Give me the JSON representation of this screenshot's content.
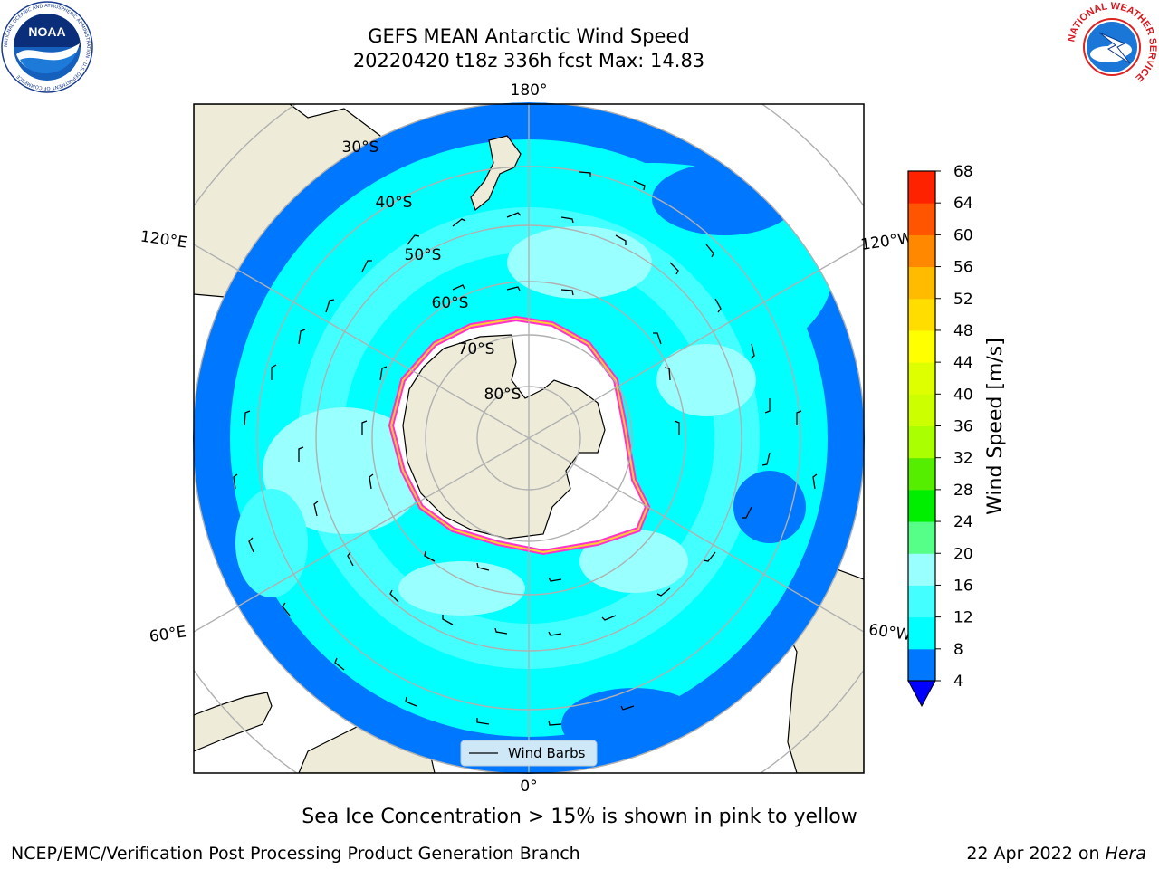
{
  "header": {
    "title_line1": "GEFS MEAN Antarctic Wind Speed",
    "title_line2": "20220420 t18z 336h fcst   Max: 14.83"
  },
  "logos": {
    "left": "NOAA",
    "left_ring_text": "NATIONAL OCEANIC AND ATMOSPHERIC ADMINISTRATION · U.S. DEPARTMENT OF COMMERCE",
    "right_ring_text": "NATIONAL WEATHER SERVICE"
  },
  "map": {
    "projection": "south polar stereographic",
    "longitude_labels": [
      "180°",
      "120°E",
      "120°W",
      "60°E",
      "60°W",
      "0°"
    ],
    "latitude_labels": [
      "30°S",
      "40°S",
      "50°S",
      "60°S",
      "70°S",
      "80°S"
    ],
    "legend_label": "Wind Barbs",
    "colors": {
      "land": "#eeecd9",
      "ice": "#ffffff",
      "ice_edge": [
        "#ff33cc",
        "#ffcc33"
      ],
      "grid": "#b0b0b0"
    }
  },
  "colorbar": {
    "label": "Wind Speed [m/s]",
    "ticks": [
      "4",
      "8",
      "12",
      "16",
      "20",
      "24",
      "28",
      "32",
      "36",
      "40",
      "44",
      "48",
      "52",
      "56",
      "60",
      "64",
      "68"
    ],
    "colors": [
      "#0077ff",
      "#00ffff",
      "#44ffff",
      "#99ffff",
      "#55ff88",
      "#00ee00",
      "#55ee00",
      "#aaff00",
      "#ccff00",
      "#ddff00",
      "#ffff00",
      "#ffdd00",
      "#ffbb00",
      "#ff8800",
      "#ff5500",
      "#ff2200"
    ],
    "under_color": "#0000ff"
  },
  "footer": {
    "note": "Sea Ice Concentration > 15% is shown in pink to yellow",
    "credit": "NCEP/EMC/Verification Post Processing Product Generation Branch",
    "date_prefix": "22 Apr 2022 on ",
    "date_machine": "Hera"
  }
}
